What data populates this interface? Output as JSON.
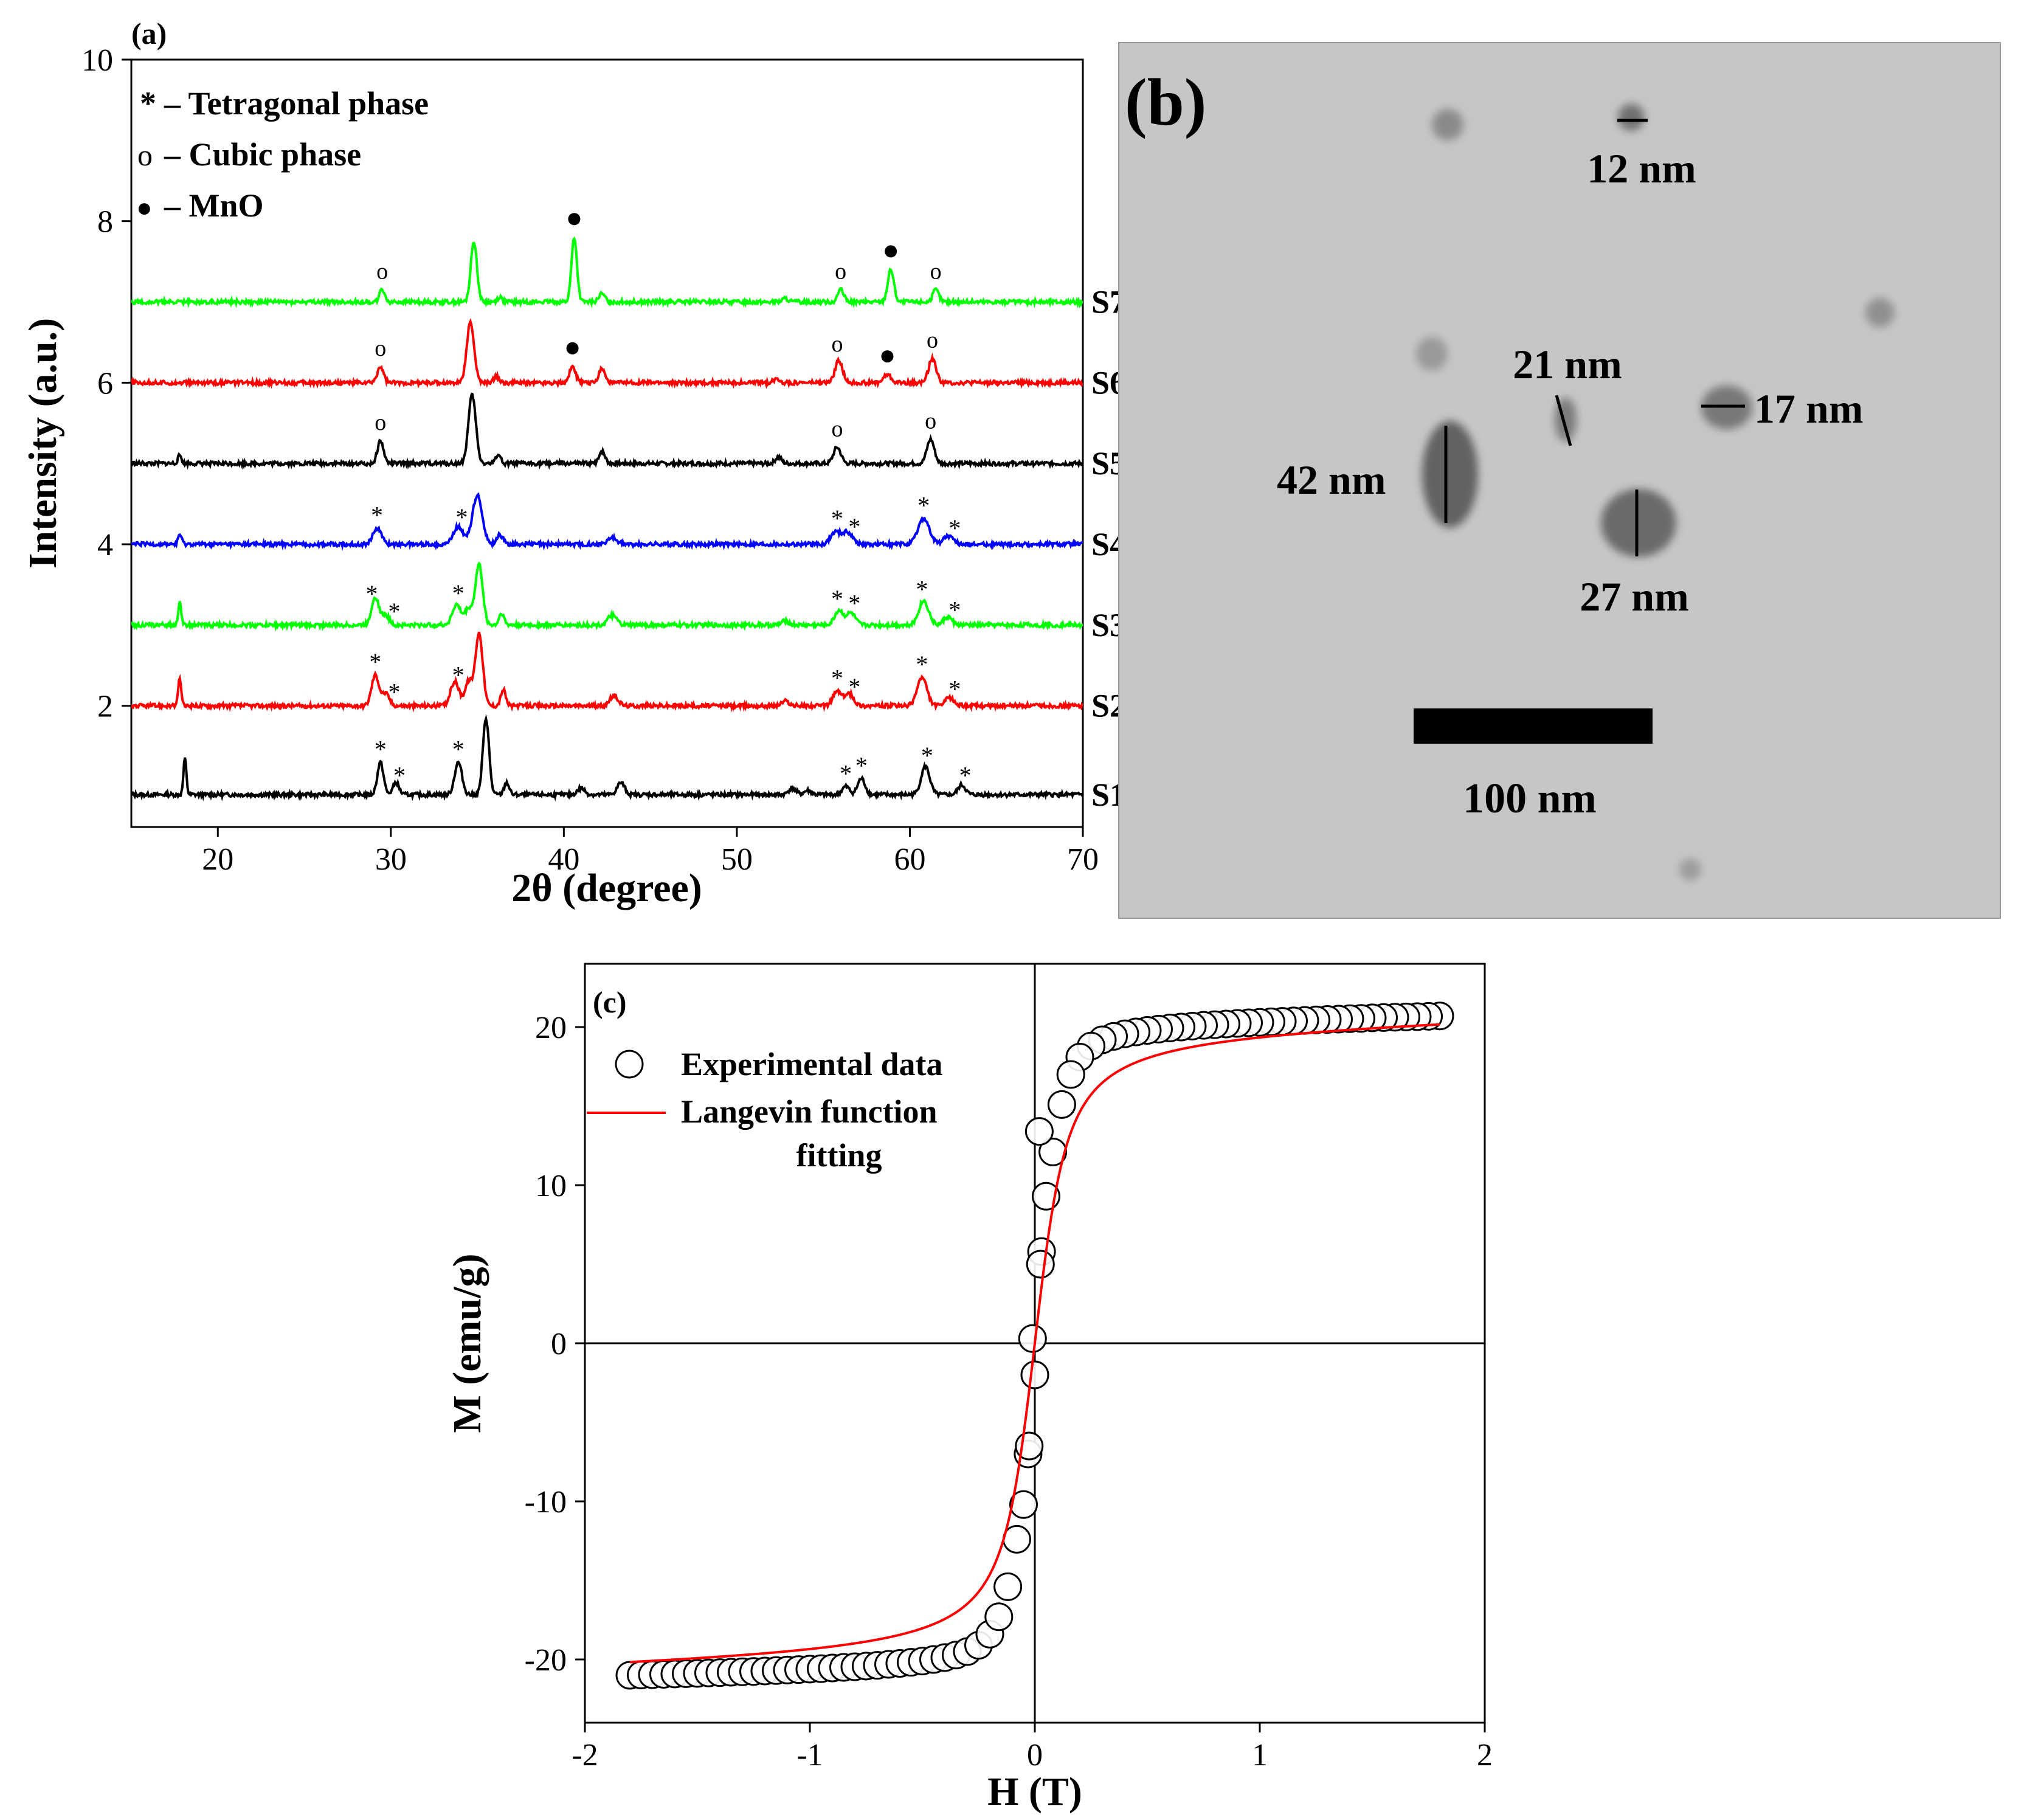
{
  "figure": {
    "panels": [
      "(a)",
      "(b)",
      "(c)"
    ]
  },
  "chart_data": [
    {
      "id": "a",
      "type": "line",
      "panel_label": "(a)",
      "title": "",
      "xlabel": "2θ (degree)",
      "ylabel": "Intensity (a.u.)",
      "xlim": [
        15,
        70
      ],
      "ylim": [
        0.5,
        10
      ],
      "xticks": [
        20,
        30,
        40,
        50,
        60,
        70
      ],
      "yticks": [
        2,
        4,
        6,
        8,
        10
      ],
      "legend": [
        {
          "symbol": "*",
          "text": "– Tetragonal phase"
        },
        {
          "symbol": "o",
          "text": "– Cubic phase"
        },
        {
          "symbol": "●",
          "text": "– MnO"
        }
      ],
      "series": [
        {
          "name": "S1",
          "color": "#000000",
          "baseline": 0.9,
          "peaks": [
            [
              18.1,
              0.45,
              0.12
            ],
            [
              29.4,
              0.4,
              0.25
            ],
            [
              30.3,
              0.15,
              0.25
            ],
            [
              33.9,
              0.4,
              0.3
            ],
            [
              35.5,
              0.95,
              0.25
            ],
            [
              36.7,
              0.15,
              0.2
            ],
            [
              41.0,
              0.08,
              0.3
            ],
            [
              43.3,
              0.15,
              0.3
            ],
            [
              53.2,
              0.08,
              0.3
            ],
            [
              54.1,
              0.05,
              0.3
            ],
            [
              56.3,
              0.1,
              0.3
            ],
            [
              57.2,
              0.2,
              0.3
            ],
            [
              60.9,
              0.35,
              0.35
            ],
            [
              63.0,
              0.12,
              0.3
            ]
          ],
          "markers": [
            {
              "x": 29.4,
              "sym": "*"
            },
            {
              "x": 30.5,
              "sym": "*"
            },
            {
              "x": 33.9,
              "sym": "*"
            },
            {
              "x": 56.3,
              "sym": "*"
            },
            {
              "x": 57.2,
              "sym": "*"
            },
            {
              "x": 61.0,
              "sym": "*"
            },
            {
              "x": 63.2,
              "sym": "*"
            }
          ]
        },
        {
          "name": "S2",
          "color": "#ff0000",
          "baseline": 2.0,
          "peaks": [
            [
              17.8,
              0.35,
              0.12
            ],
            [
              29.1,
              0.38,
              0.3
            ],
            [
              29.7,
              0.15,
              0.3
            ],
            [
              33.7,
              0.3,
              0.35
            ],
            [
              34.5,
              0.3,
              0.3
            ],
            [
              35.1,
              0.9,
              0.3
            ],
            [
              36.5,
              0.2,
              0.2
            ],
            [
              42.9,
              0.12,
              0.35
            ],
            [
              52.8,
              0.06,
              0.3
            ],
            [
              55.8,
              0.18,
              0.35
            ],
            [
              56.5,
              0.15,
              0.35
            ],
            [
              60.7,
              0.35,
              0.4
            ],
            [
              62.3,
              0.1,
              0.35
            ]
          ],
          "markers": [
            {
              "x": 29.1,
              "sym": "*"
            },
            {
              "x": 30.2,
              "sym": "*"
            },
            {
              "x": 33.9,
              "sym": "*"
            },
            {
              "x": 55.8,
              "sym": "*"
            },
            {
              "x": 56.8,
              "sym": "*"
            },
            {
              "x": 60.7,
              "sym": "*"
            },
            {
              "x": 62.6,
              "sym": "*"
            }
          ]
        },
        {
          "name": "S3",
          "color": "#00ff00",
          "baseline": 3.0,
          "peaks": [
            [
              17.8,
              0.3,
              0.12
            ],
            [
              29.1,
              0.35,
              0.3
            ],
            [
              29.7,
              0.12,
              0.3
            ],
            [
              33.8,
              0.25,
              0.35
            ],
            [
              34.5,
              0.2,
              0.3
            ],
            [
              35.1,
              0.75,
              0.3
            ],
            [
              36.4,
              0.15,
              0.2
            ],
            [
              42.8,
              0.12,
              0.35
            ],
            [
              52.8,
              0.05,
              0.3
            ],
            [
              55.9,
              0.18,
              0.35
            ],
            [
              56.6,
              0.15,
              0.35
            ],
            [
              60.8,
              0.3,
              0.4
            ],
            [
              62.2,
              0.1,
              0.35
            ]
          ],
          "markers": [
            {
              "x": 28.9,
              "sym": "*"
            },
            {
              "x": 30.2,
              "sym": "*"
            },
            {
              "x": 33.9,
              "sym": "*"
            },
            {
              "x": 55.8,
              "sym": "*"
            },
            {
              "x": 56.8,
              "sym": "*"
            },
            {
              "x": 60.7,
              "sym": "*"
            },
            {
              "x": 62.6,
              "sym": "*"
            }
          ]
        },
        {
          "name": "S4",
          "color": "#0000ff",
          "baseline": 4.0,
          "peaks": [
            [
              17.8,
              0.12,
              0.15
            ],
            [
              29.2,
              0.2,
              0.35
            ],
            [
              33.9,
              0.22,
              0.4
            ],
            [
              35.0,
              0.6,
              0.4
            ],
            [
              36.3,
              0.12,
              0.25
            ],
            [
              42.8,
              0.08,
              0.4
            ],
            [
              55.7,
              0.15,
              0.4
            ],
            [
              56.4,
              0.15,
              0.4
            ],
            [
              60.8,
              0.32,
              0.45
            ],
            [
              62.2,
              0.1,
              0.4
            ]
          ],
          "markers": [
            {
              "x": 29.2,
              "sym": "*"
            },
            {
              "x": 34.1,
              "sym": "*"
            },
            {
              "x": 55.8,
              "sym": "*"
            },
            {
              "x": 56.8,
              "sym": "*"
            },
            {
              "x": 60.8,
              "sym": "*"
            },
            {
              "x": 62.6,
              "sym": "*"
            }
          ]
        },
        {
          "name": "S5",
          "color": "#000000",
          "baseline": 5.0,
          "peaks": [
            [
              17.8,
              0.1,
              0.15
            ],
            [
              29.4,
              0.28,
              0.25
            ],
            [
              34.7,
              0.85,
              0.3
            ],
            [
              36.2,
              0.12,
              0.2
            ],
            [
              42.2,
              0.15,
              0.25
            ],
            [
              52.4,
              0.08,
              0.25
            ],
            [
              55.8,
              0.2,
              0.3
            ],
            [
              61.2,
              0.3,
              0.3
            ]
          ],
          "markers": [
            {
              "x": 29.4,
              "sym": "o"
            },
            {
              "x": 55.8,
              "sym": "o"
            },
            {
              "x": 61.2,
              "sym": "o"
            }
          ]
        },
        {
          "name": "S6",
          "color": "#ff0000",
          "baseline": 6.0,
          "peaks": [
            [
              29.4,
              0.2,
              0.25
            ],
            [
              34.6,
              0.75,
              0.3
            ],
            [
              36.1,
              0.08,
              0.2
            ],
            [
              40.5,
              0.2,
              0.25
            ],
            [
              42.2,
              0.18,
              0.25
            ],
            [
              52.3,
              0.05,
              0.25
            ],
            [
              55.9,
              0.28,
              0.3
            ],
            [
              58.7,
              0.1,
              0.3
            ],
            [
              61.3,
              0.3,
              0.3
            ]
          ],
          "markers": [
            {
              "x": 29.4,
              "sym": "o"
            },
            {
              "x": 40.5,
              "sym": "●"
            },
            {
              "x": 55.8,
              "sym": "o"
            },
            {
              "x": 58.7,
              "sym": "●"
            },
            {
              "x": 61.3,
              "sym": "o"
            }
          ]
        },
        {
          "name": "S7",
          "color": "#00ff00",
          "baseline": 7.0,
          "peaks": [
            [
              29.5,
              0.15,
              0.22
            ],
            [
              34.8,
              0.75,
              0.25
            ],
            [
              36.3,
              0.06,
              0.2
            ],
            [
              40.6,
              0.8,
              0.22
            ],
            [
              42.2,
              0.1,
              0.25
            ],
            [
              52.8,
              0.04,
              0.25
            ],
            [
              56.0,
              0.15,
              0.25
            ],
            [
              58.9,
              0.4,
              0.25
            ],
            [
              61.5,
              0.15,
              0.25
            ]
          ],
          "markers": [
            {
              "x": 29.5,
              "sym": "o"
            },
            {
              "x": 40.6,
              "sym": "●"
            },
            {
              "x": 56.0,
              "sym": "o"
            },
            {
              "x": 58.9,
              "sym": "●"
            },
            {
              "x": 61.5,
              "sym": "o"
            }
          ]
        }
      ]
    },
    {
      "id": "c",
      "type": "scatter",
      "panel_label": "(c)",
      "title": "",
      "xlabel": "H (T)",
      "ylabel": "M (emu/g)",
      "xlim": [
        -2,
        2
      ],
      "ylim": [
        -24,
        24
      ],
      "xticks": [
        -2,
        -1,
        0,
        1,
        2
      ],
      "yticks": [
        -20,
        -10,
        0,
        10,
        20
      ],
      "legend": [
        {
          "symbol": "circle",
          "text": "Experimental data"
        },
        {
          "symbol": "line",
          "color": "#ff0000",
          "text": "Langevin function fitting"
        }
      ],
      "fit": {
        "Ms": 20.8,
        "a": 0.055,
        "chi": 0.35
      },
      "experimental_points": [
        [
          -1.8,
          -21.0
        ],
        [
          -1.75,
          -20.98
        ],
        [
          -1.7,
          -20.96
        ],
        [
          -1.65,
          -20.94
        ],
        [
          -1.6,
          -20.92
        ],
        [
          -1.55,
          -20.9
        ],
        [
          -1.5,
          -20.88
        ],
        [
          -1.45,
          -20.85
        ],
        [
          -1.4,
          -20.83
        ],
        [
          -1.35,
          -20.81
        ],
        [
          -1.3,
          -20.78
        ],
        [
          -1.25,
          -20.76
        ],
        [
          -1.2,
          -20.73
        ],
        [
          -1.15,
          -20.7
        ],
        [
          -1.1,
          -20.67
        ],
        [
          -1.05,
          -20.64
        ],
        [
          -1.0,
          -20.61
        ],
        [
          -0.95,
          -20.58
        ],
        [
          -0.9,
          -20.54
        ],
        [
          -0.85,
          -20.5
        ],
        [
          -0.8,
          -20.46
        ],
        [
          -0.75,
          -20.42
        ],
        [
          -0.7,
          -20.37
        ],
        [
          -0.65,
          -20.31
        ],
        [
          -0.6,
          -20.25
        ],
        [
          -0.55,
          -20.18
        ],
        [
          -0.5,
          -20.1
        ],
        [
          -0.45,
          -20.0
        ],
        [
          -0.4,
          -19.88
        ],
        [
          -0.35,
          -19.72
        ],
        [
          -0.3,
          -19.5
        ],
        [
          -0.25,
          -19.1
        ],
        [
          -0.2,
          -18.4
        ],
        [
          -0.16,
          -17.3
        ],
        [
          -0.12,
          -15.4
        ],
        [
          -0.08,
          -12.4
        ],
        [
          -0.05,
          -10.2
        ],
        [
          -0.03,
          -7.0
        ],
        [
          -0.025,
          -6.5
        ],
        [
          0.0,
          -2.0
        ],
        [
          -0.01,
          0.3
        ],
        [
          1.8,
          20.7
        ],
        [
          1.75,
          20.68
        ],
        [
          1.7,
          20.66
        ],
        [
          1.65,
          20.64
        ],
        [
          1.6,
          20.62
        ],
        [
          1.55,
          20.6
        ],
        [
          1.5,
          20.58
        ],
        [
          1.45,
          20.55
        ],
        [
          1.4,
          20.53
        ],
        [
          1.35,
          20.5
        ],
        [
          1.3,
          20.48
        ],
        [
          1.25,
          20.45
        ],
        [
          1.2,
          20.42
        ],
        [
          1.15,
          20.39
        ],
        [
          1.1,
          20.36
        ],
        [
          1.05,
          20.33
        ],
        [
          1.0,
          20.3
        ],
        [
          0.95,
          20.27
        ],
        [
          0.9,
          20.23
        ],
        [
          0.85,
          20.19
        ],
        [
          0.8,
          20.15
        ],
        [
          0.75,
          20.11
        ],
        [
          0.7,
          20.06
        ],
        [
          0.65,
          20.0
        ],
        [
          0.6,
          19.94
        ],
        [
          0.55,
          19.87
        ],
        [
          0.5,
          19.79
        ],
        [
          0.45,
          19.69
        ],
        [
          0.4,
          19.57
        ],
        [
          0.35,
          19.41
        ],
        [
          0.3,
          19.19
        ],
        [
          0.25,
          18.8
        ],
        [
          0.2,
          18.1
        ],
        [
          0.16,
          17.0
        ],
        [
          0.12,
          15.1
        ],
        [
          0.08,
          12.1
        ],
        [
          0.05,
          9.3
        ],
        [
          0.03,
          5.8
        ],
        [
          0.025,
          5.0
        ],
        [
          0.02,
          13.4
        ]
      ]
    }
  ],
  "tem_image": {
    "panel_label": "(b)",
    "annotations": [
      "12 nm",
      "21 nm",
      "17 nm",
      "42 nm",
      "27 nm"
    ],
    "scale_bar_label": "100 nm"
  }
}
